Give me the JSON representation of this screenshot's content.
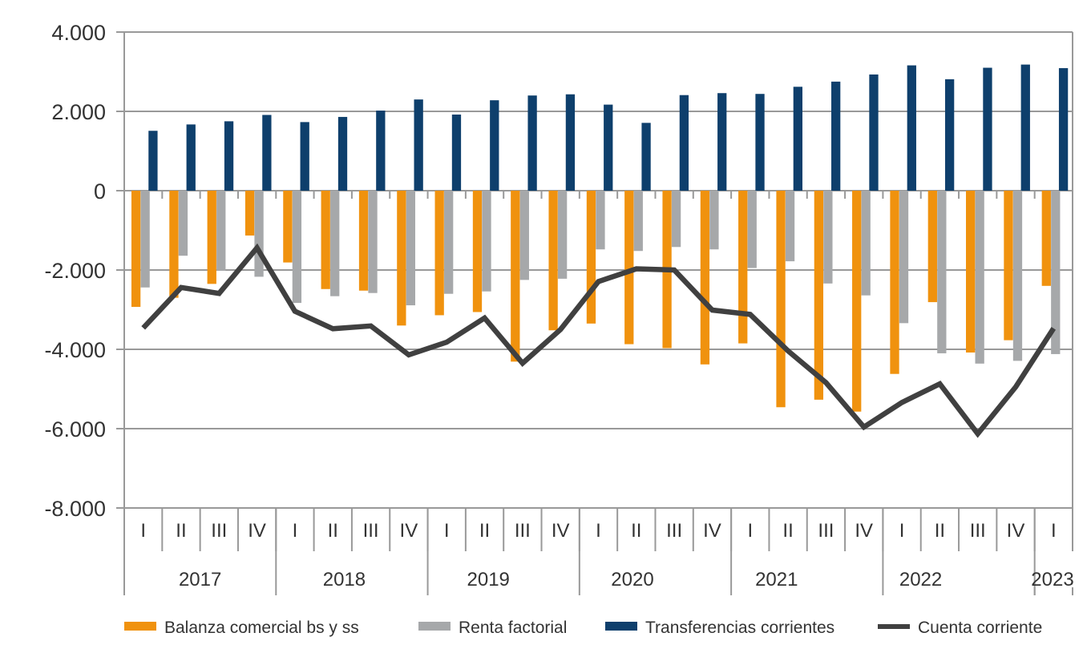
{
  "chart_data": {
    "type": "bar",
    "title": "",
    "xlabel": "",
    "ylabel": "",
    "ylim": [
      -8000,
      4000
    ],
    "yticks": [
      4000,
      2000,
      0,
      -2000,
      -4000,
      -6000,
      -8000
    ],
    "ytick_labels": [
      "4.000",
      "2.000",
      "0",
      "-2.000",
      "-4.000",
      "-6.000",
      "-8.000"
    ],
    "grid": true,
    "legend_position": "bottom",
    "years": [
      {
        "label": "2017",
        "quarters": 4
      },
      {
        "label": "2018",
        "quarters": 4
      },
      {
        "label": "2019",
        "quarters": 4
      },
      {
        "label": "2020",
        "quarters": 4
      },
      {
        "label": "2021",
        "quarters": 4
      },
      {
        "label": "2022",
        "quarters": 4
      },
      {
        "label": "2023",
        "quarters": 1
      }
    ],
    "categories": [
      "I",
      "II",
      "III",
      "IV",
      "I",
      "II",
      "III",
      "IV",
      "I",
      "II",
      "III",
      "IV",
      "I",
      "II",
      "III",
      "IV",
      "I",
      "II",
      "III",
      "IV",
      "I",
      "II",
      "III",
      "IV",
      "I"
    ],
    "series": [
      {
        "name": "Balanza comercial bs y ss",
        "type": "bar",
        "color": "#F0920E",
        "values": [
          -2930,
          -2700,
          -2350,
          -1130,
          -1810,
          -2480,
          -2520,
          -3400,
          -3140,
          -3060,
          -4310,
          -3520,
          -3350,
          -3870,
          -3970,
          -4380,
          -3850,
          -5460,
          -5270,
          -5570,
          -4620,
          -2810,
          -4080,
          -3770,
          -2400
        ]
      },
      {
        "name": "Renta factorial",
        "type": "bar",
        "color": "#A6A8AA",
        "values": [
          -2440,
          -1640,
          -2020,
          -2170,
          -2830,
          -2660,
          -2580,
          -2890,
          -2600,
          -2540,
          -2250,
          -2220,
          -1480,
          -1520,
          -1420,
          -1480,
          -1950,
          -1780,
          -2340,
          -2640,
          -3340,
          -4100,
          -4360,
          -4290,
          -4120
        ]
      },
      {
        "name": "Transferencias corrientes",
        "type": "bar",
        "color": "#0E3F6C",
        "values": [
          1510,
          1670,
          1750,
          1910,
          1730,
          1860,
          2020,
          2300,
          1920,
          2280,
          2400,
          2430,
          2170,
          1710,
          2410,
          2460,
          2440,
          2620,
          2750,
          2930,
          3160,
          2810,
          3100,
          3180,
          3090
        ]
      },
      {
        "name": "Cuenta corriente",
        "type": "line",
        "color": "#404040",
        "values": [
          -3460,
          -2440,
          -2590,
          -1440,
          -3040,
          -3480,
          -3410,
          -4140,
          -3820,
          -3210,
          -4350,
          -3500,
          -2290,
          -1970,
          -2000,
          -3010,
          -3120,
          -4040,
          -4840,
          -5960,
          -5340,
          -4870,
          -6130,
          -4950,
          -3470
        ]
      }
    ]
  }
}
